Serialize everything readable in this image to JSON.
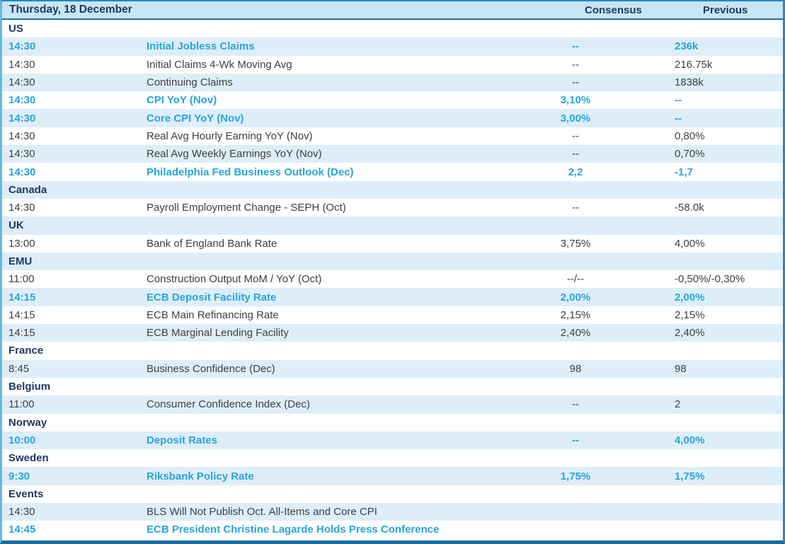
{
  "calendar": {
    "date_title": "Thursday, 18 December",
    "columns": {
      "consensus": "Consensus",
      "previous": "Previous"
    },
    "colors": {
      "header_background": "#c9e5f4",
      "alternate_row_background": "#ddeef9",
      "heading_text": "#1f3864",
      "body_text": "#404040",
      "highlight_text": "#29a4dc",
      "outer_border": "#2489be",
      "left_border": "#66b8e3",
      "bottom_border": "#1a6b9e"
    },
    "rows": [
      {
        "type": "section",
        "label": "US"
      },
      {
        "type": "event",
        "time": "14:30",
        "name": "Initial Jobless Claims",
        "consensus": "--",
        "previous": "236k",
        "highlight": true
      },
      {
        "type": "event",
        "time": "14:30",
        "name": "Initial Claims 4-Wk Moving Avg",
        "consensus": "--",
        "previous": "216.75k",
        "highlight": false
      },
      {
        "type": "event",
        "time": "14:30",
        "name": "Continuing Claims",
        "consensus": "--",
        "previous": "1838k",
        "highlight": false
      },
      {
        "type": "event",
        "time": "14:30",
        "name": "CPI YoY (Nov)",
        "consensus": "3,10%",
        "previous": "--",
        "highlight": true
      },
      {
        "type": "event",
        "time": "14:30",
        "name": "Core CPI YoY (Nov)",
        "consensus": "3,00%",
        "previous": "--",
        "highlight": true
      },
      {
        "type": "event",
        "time": "14:30",
        "name": "Real Avg Hourly Earning YoY (Nov)",
        "consensus": "--",
        "previous": "0,80%",
        "highlight": false
      },
      {
        "type": "event",
        "time": "14:30",
        "name": "Real Avg Weekly Earnings YoY (Nov)",
        "consensus": "--",
        "previous": "0,70%",
        "highlight": false
      },
      {
        "type": "event",
        "time": "14:30",
        "name": "Philadelphia Fed Business Outlook (Dec)",
        "consensus": "2,2",
        "previous": "-1,7",
        "highlight": true
      },
      {
        "type": "section",
        "label": "Canada"
      },
      {
        "type": "event",
        "time": "14:30",
        "name": "Payroll Employment Change - SEPH (Oct)",
        "consensus": "--",
        "previous": "-58.0k",
        "highlight": false
      },
      {
        "type": "section",
        "label": "UK"
      },
      {
        "type": "event",
        "time": "13:00",
        "name": "Bank of England Bank Rate",
        "consensus": "3,75%",
        "previous": "4,00%",
        "highlight": false
      },
      {
        "type": "section",
        "label": "EMU"
      },
      {
        "type": "event",
        "time": "11:00",
        "name": "Construction Output MoM / YoY (Oct)",
        "consensus": "--/--",
        "previous": "-0,50%/-0,30%",
        "highlight": false
      },
      {
        "type": "event",
        "time": "14:15",
        "name": "ECB Deposit Facility Rate",
        "consensus": "2,00%",
        "previous": "2,00%",
        "highlight": true
      },
      {
        "type": "event",
        "time": "14:15",
        "name": "ECB Main Refinancing Rate",
        "consensus": "2,15%",
        "previous": "2,15%",
        "highlight": false
      },
      {
        "type": "event",
        "time": "14:15",
        "name": "ECB Marginal Lending Facility",
        "consensus": "2,40%",
        "previous": "2,40%",
        "highlight": false
      },
      {
        "type": "section",
        "label": "France"
      },
      {
        "type": "event",
        "time": "8:45",
        "name": "Business Confidence (Dec)",
        "consensus": "98",
        "previous": "98",
        "highlight": false
      },
      {
        "type": "section",
        "label": "Belgium"
      },
      {
        "type": "event",
        "time": "11:00",
        "name": "Consumer Confidence Index (Dec)",
        "consensus": "--",
        "previous": "2",
        "highlight": false
      },
      {
        "type": "section",
        "label": "Norway"
      },
      {
        "type": "event",
        "time": "10:00",
        "name": "Deposit Rates",
        "consensus": "--",
        "previous": "4,00%",
        "highlight": true
      },
      {
        "type": "section",
        "label": "Sweden"
      },
      {
        "type": "event",
        "time": "9:30",
        "name": "Riksbank Policy Rate",
        "consensus": "1,75%",
        "previous": "1,75%",
        "highlight": true
      },
      {
        "type": "section",
        "label": "Events"
      },
      {
        "type": "event",
        "time": "14:30",
        "name": "BLS Will Not Publish Oct. All-Items and Core CPI",
        "consensus": "",
        "previous": "",
        "highlight": false
      },
      {
        "type": "event",
        "time": "14:45",
        "name": "ECB President Christine Lagarde Holds Press Conference",
        "consensus": "",
        "previous": "",
        "highlight": true
      }
    ]
  }
}
